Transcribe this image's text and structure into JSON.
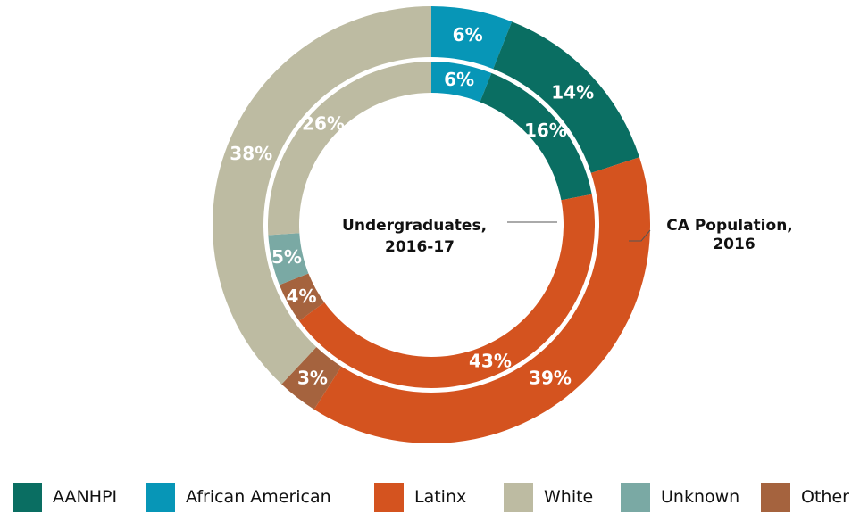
{
  "chart_data": {
    "type": "pie",
    "variant": "nested-donut",
    "categories": [
      "AANHPI",
      "African American",
      "Latinx",
      "White",
      "Unknown",
      "Other"
    ],
    "colors": {
      "AANHPI": "#0a6e62",
      "African American": "#0796b7",
      "Latinx": "#d4531f",
      "White": "#bdbba2",
      "Unknown": "#7aa9a4",
      "Other": "#a5633e"
    },
    "series": [
      {
        "name": "CA Population, 2016",
        "ring": "outer",
        "values": [
          14,
          6,
          39,
          38,
          0,
          3
        ],
        "labels": [
          "14%",
          "6%",
          "39%",
          "38%",
          "",
          "3%"
        ]
      },
      {
        "name": "Undergraduates, 2016-17",
        "ring": "inner",
        "values": [
          16,
          6,
          43,
          26,
          5,
          4
        ],
        "labels": [
          "16%",
          "6%",
          "43%",
          "26%",
          "5%",
          "4%"
        ]
      }
    ],
    "ring_titles": {
      "inner": [
        "Undergraduates,",
        "2016-17"
      ],
      "outer": [
        "CA Population,",
        "2016"
      ]
    },
    "legend": {
      "placement": "bottom",
      "entries": [
        "AANHPI",
        "African American",
        "Latinx",
        "White",
        "Unknown",
        "Other"
      ]
    }
  }
}
